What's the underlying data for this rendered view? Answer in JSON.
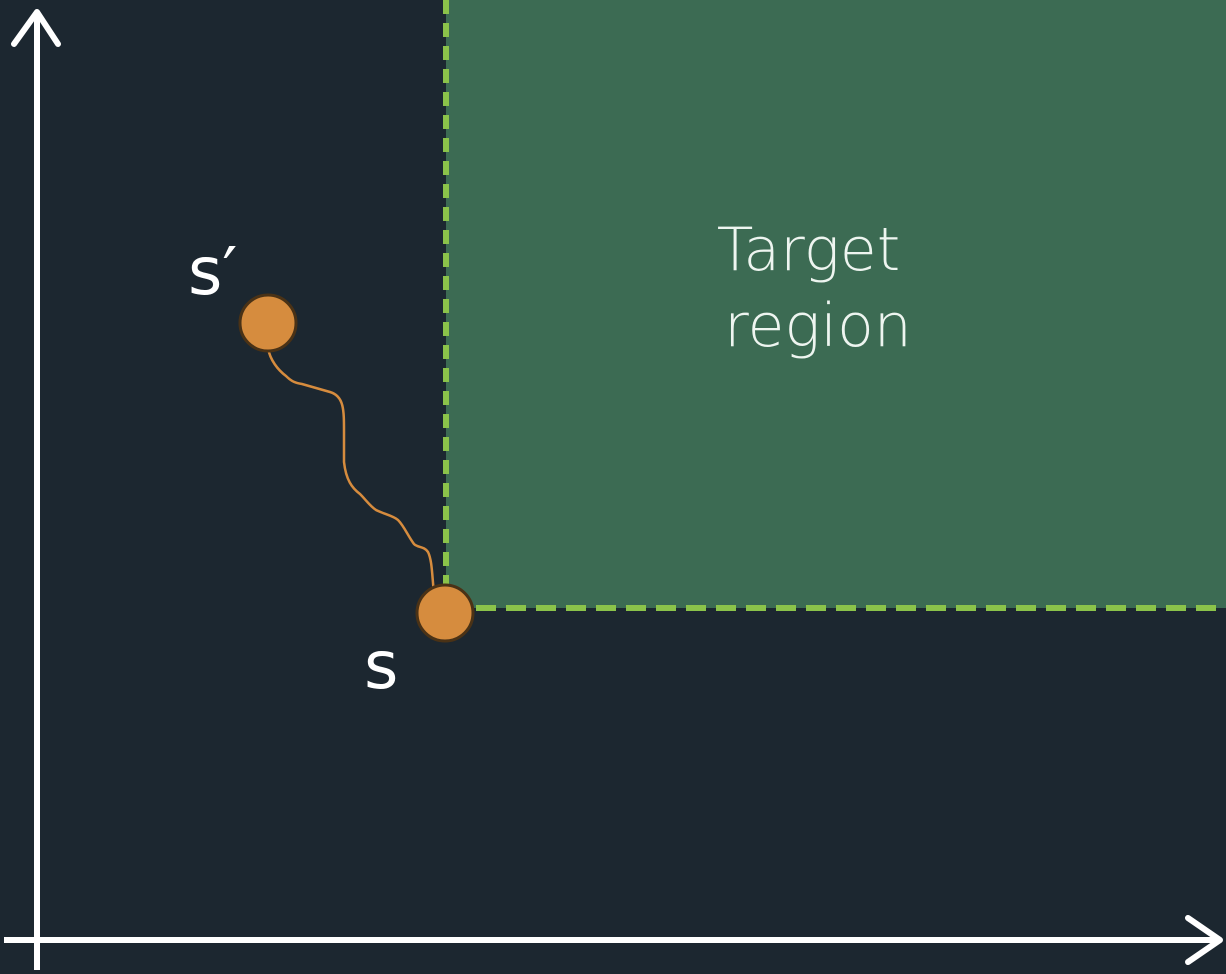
{
  "colors": {
    "background": "#1c2730",
    "target_region_fill": "#3c6b53",
    "target_region_border": "#8bc34a",
    "axis": "#ffffff",
    "state_point": "#d68c3e",
    "state_point_outline": "#4a3216",
    "trajectory": "#d68c3e",
    "text": "#ffffff"
  },
  "target_region": {
    "label_line1": "Target",
    "label_line2": "region"
  },
  "states": {
    "start_label": "s",
    "end_label": "s′"
  },
  "icons": {
    "x_axis_head": "arrow-right-icon",
    "y_axis_head": "arrow-up-icon"
  }
}
